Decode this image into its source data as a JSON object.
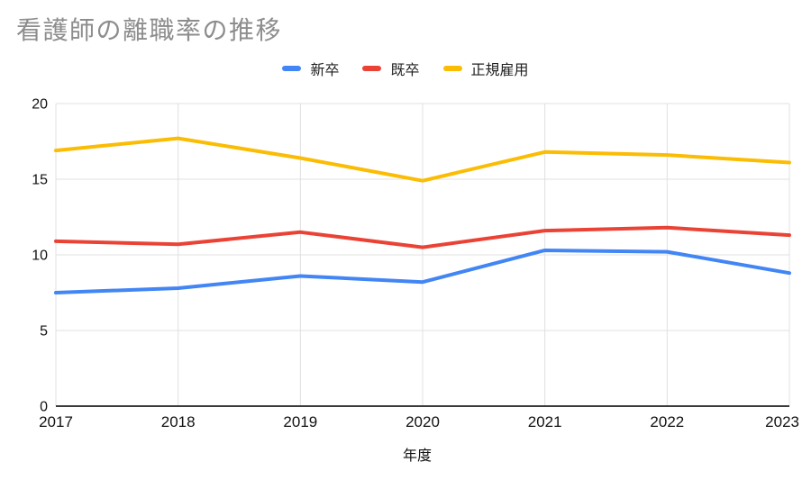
{
  "page": {
    "background": "#ffffff"
  },
  "chart_data": {
    "type": "line",
    "title": "看護師の離職率の推移",
    "title_color": "#8d8d8d",
    "xlabel": "年度",
    "ylabel": "",
    "categories": [
      "2017",
      "2018",
      "2019",
      "2020",
      "2021",
      "2022",
      "2023"
    ],
    "series": [
      {
        "name": "新卒",
        "color": "#4285F4",
        "values": [
          7.5,
          7.8,
          8.6,
          8.2,
          10.3,
          10.2,
          8.8
        ]
      },
      {
        "name": "既卒",
        "color": "#EA4335",
        "values": [
          10.9,
          10.7,
          11.5,
          10.5,
          11.6,
          11.8,
          11.3
        ]
      },
      {
        "name": "正規雇用",
        "color": "#FBBC04",
        "values": [
          16.9,
          17.7,
          16.4,
          14.9,
          16.8,
          16.6,
          16.1
        ]
      }
    ],
    "ylim": [
      0,
      20
    ],
    "yticks": [
      0,
      5,
      10,
      15,
      20
    ],
    "grid": true,
    "legend_position": "top",
    "line_width": 4,
    "gridline_color": "#e0e0e0",
    "axis_line_color": "#3a3a3a",
    "tick_label_color": "#111111",
    "axis_title_color": "#111111"
  }
}
